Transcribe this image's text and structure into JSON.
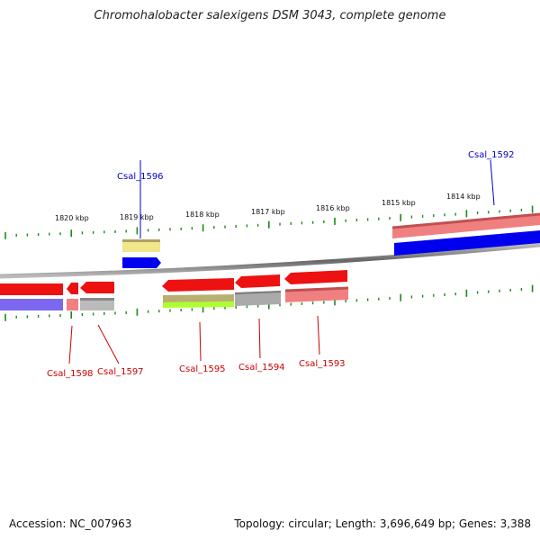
{
  "title": "Chromohalobacter salexigens DSM 3043, complete genome",
  "footer": {
    "accession": "Accession: NC_007963",
    "stats": "Topology: circular; Length: 3,696,649 bp; Genes: 3,388"
  },
  "colors": {
    "tick": "#1a8a1a",
    "backbone": "#7a7a7a",
    "cds_red": "#ee1111",
    "label_red": "#cc0000",
    "label_blue": "#0000cc",
    "blue": "#0000ee",
    "pink": "#f08080",
    "gray": "#aaaaaa",
    "yellow": "#f0e68c",
    "lavender": "#7b68ee",
    "yellowgreen": "#adff2f",
    "olive": "#b8b070"
  },
  "scale_labels": [
    "1820 kbp",
    "1819 kbp",
    "1818 kbp",
    "1817 kbp",
    "1816 kbp",
    "1815 kbp",
    "1814 kbp"
  ],
  "gene_labels": {
    "top": [
      "Csal_1596",
      "Csal_1592"
    ],
    "bottom": [
      "Csal_1598",
      "Csal_1597",
      "Csal_1595",
      "Csal_1594",
      "Csal_1593"
    ]
  }
}
